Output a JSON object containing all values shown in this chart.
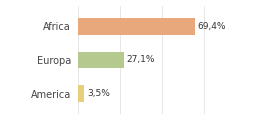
{
  "categories": [
    "Africa",
    "Europa",
    "America"
  ],
  "values": [
    69.4,
    27.1,
    3.5
  ],
  "labels": [
    "69,4%",
    "27,1%",
    "3,5%"
  ],
  "bar_colors": [
    "#e8a87c",
    "#b5c98e",
    "#e8d07a"
  ],
  "background_color": "#ffffff",
  "figsize": [
    2.8,
    1.2
  ],
  "dpi": 100,
  "xlim": [
    0,
    100
  ],
  "bar_height": 0.5
}
